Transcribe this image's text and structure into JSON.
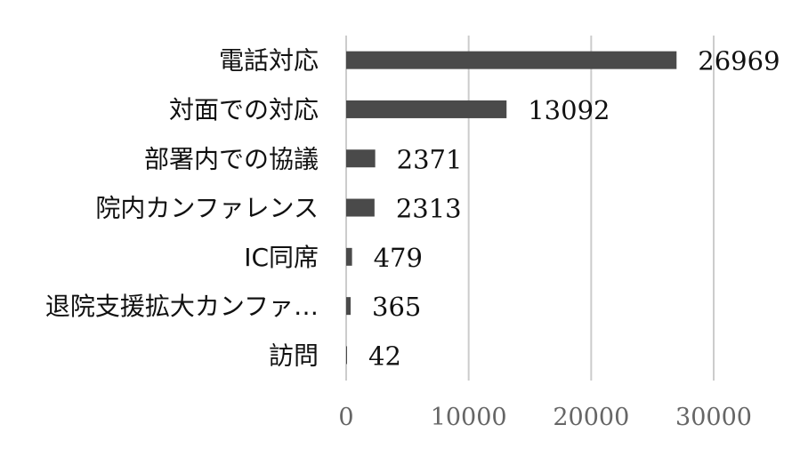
{
  "chart_data": {
    "type": "bar",
    "orientation": "horizontal",
    "categories": [
      "電話対応",
      "対面での対応",
      "部署内での協議",
      "院内カンファレンス",
      "IC同席",
      "退院支援拡大カンファ…",
      "訪問"
    ],
    "values": [
      26969,
      13092,
      2371,
      2313,
      479,
      365,
      42
    ],
    "xlim": [
      0,
      30000
    ],
    "xticks": [
      "0",
      "10000",
      "20000",
      "30000"
    ],
    "grid": true,
    "legend": false,
    "data_labels": true,
    "colors": {
      "bar": "#4a4a4a",
      "grid": "#cccccc",
      "tick_text": "#666666",
      "label_text": "#111111"
    }
  }
}
